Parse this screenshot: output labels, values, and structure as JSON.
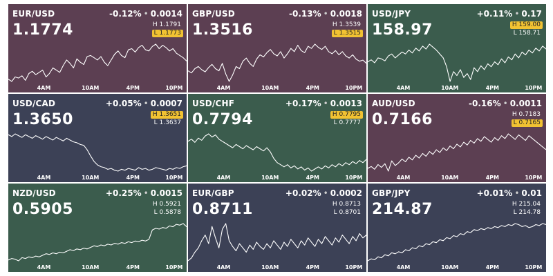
{
  "time_axis": [
    "4AM",
    "10AM",
    "4PM",
    "10PM"
  ],
  "colors": {
    "up": "#3b5c4d",
    "down": "#5c3f52",
    "flat": "#3c4156",
    "highlight": "#f1c232"
  },
  "tiles": [
    {
      "pair": "EUR/USD",
      "change_pct": "-0.12%",
      "change_abs": "0.0014",
      "price": "1.1774",
      "high": "H 1.1791",
      "low": "L 1.1773",
      "hit": "low",
      "color": "#5c3f52",
      "series": [
        78,
        76,
        80,
        79,
        81,
        77,
        83,
        85,
        82,
        84,
        86,
        80,
        83,
        88,
        86,
        84,
        90,
        95,
        92,
        88,
        96,
        93,
        91,
        98,
        99,
        97,
        95,
        98,
        93,
        90,
        95,
        100,
        103,
        99,
        97,
        104,
        105,
        102,
        106,
        108,
        104,
        103,
        107,
        109,
        105,
        108,
        106,
        103,
        105,
        101,
        99,
        97,
        94
      ]
    },
    {
      "pair": "GBP/USD",
      "change_pct": "-0.13%",
      "change_abs": "0.0018",
      "price": "1.3516",
      "high": "H 1.3539",
      "low": "L 1.3515",
      "hit": "low",
      "color": "#5c3f52",
      "series": [
        88,
        86,
        90,
        92,
        89,
        87,
        91,
        94,
        90,
        88,
        95,
        85,
        78,
        84,
        92,
        90,
        97,
        100,
        95,
        92,
        99,
        103,
        101,
        105,
        108,
        104,
        102,
        106,
        100,
        104,
        109,
        106,
        112,
        107,
        105,
        111,
        109,
        113,
        110,
        108,
        111,
        106,
        104,
        107,
        103,
        106,
        102,
        100,
        103,
        99,
        97,
        98,
        95
      ]
    },
    {
      "pair": "USD/JPY",
      "change_pct": "+0.11%",
      "change_abs": "0.17",
      "price": "158.97",
      "high": "H 159.00",
      "low": "L 158.71",
      "hit": "high",
      "color": "#3b5c4d",
      "series": [
        100,
        102,
        99,
        104,
        103,
        101,
        106,
        108,
        104,
        107,
        110,
        108,
        112,
        109,
        114,
        111,
        116,
        113,
        118,
        115,
        112,
        108,
        104,
        95,
        80,
        90,
        86,
        92,
        84,
        88,
        82,
        94,
        90,
        96,
        92,
        98,
        95,
        100,
        97,
        103,
        99,
        105,
        102,
        108,
        104,
        110,
        107,
        112,
        109,
        114,
        111,
        116,
        113
      ]
    },
    {
      "pair": "USD/CAD",
      "change_pct": "+0.05%",
      "change_abs": "0.0007",
      "price": "1.3650",
      "high": "H 1.3651",
      "low": "L 1.3637",
      "hit": "high",
      "color": "#3c4156",
      "series": [
        112,
        110,
        113,
        111,
        109,
        112,
        110,
        108,
        111,
        109,
        107,
        110,
        108,
        106,
        109,
        107,
        105,
        108,
        106,
        104,
        103,
        101,
        100,
        95,
        88,
        82,
        78,
        76,
        75,
        73,
        74,
        72,
        71,
        73,
        72,
        74,
        73,
        72,
        75,
        73,
        74,
        72,
        73,
        75,
        74,
        73,
        72,
        74,
        73,
        75,
        74,
        76,
        77
      ]
    },
    {
      "pair": "USD/CHF",
      "change_pct": "+0.17%",
      "change_abs": "0.0013",
      "price": "0.7794",
      "high": "H 0.7795",
      "low": "L 0.7777",
      "hit": "high",
      "color": "#3b5c4d",
      "series": [
        104,
        106,
        103,
        107,
        105,
        109,
        111,
        108,
        110,
        106,
        104,
        102,
        100,
        98,
        101,
        99,
        97,
        100,
        98,
        96,
        99,
        97,
        95,
        98,
        94,
        88,
        84,
        82,
        80,
        82,
        79,
        81,
        78,
        80,
        77,
        79,
        76,
        78,
        80,
        78,
        81,
        79,
        82,
        80,
        83,
        81,
        84,
        82,
        85,
        83,
        86,
        84,
        87
      ]
    },
    {
      "pair": "AUD/USD",
      "change_pct": "-0.16%",
      "change_abs": "0.0011",
      "price": "0.7166",
      "high": "H 0.7183",
      "low": "L 0.7165",
      "hit": "low",
      "color": "#5c3f52",
      "series": [
        78,
        80,
        77,
        82,
        79,
        83,
        75,
        86,
        81,
        84,
        88,
        85,
        90,
        87,
        92,
        89,
        94,
        91,
        96,
        93,
        98,
        95,
        100,
        97,
        102,
        99,
        104,
        101,
        106,
        103,
        108,
        105,
        110,
        107,
        112,
        109,
        106,
        111,
        108,
        113,
        110,
        115,
        112,
        109,
        114,
        111,
        108,
        113,
        110,
        107,
        104,
        101,
        98
      ]
    },
    {
      "pair": "NZD/USD",
      "change_pct": "+0.25%",
      "change_abs": "0.0015",
      "price": "0.5905",
      "high": "H 0.5921",
      "low": "L 0.5878",
      "hit": "",
      "color": "#3b5c4d",
      "series": [
        72,
        74,
        73,
        71,
        75,
        74,
        76,
        75,
        77,
        76,
        78,
        80,
        79,
        81,
        80,
        82,
        81,
        83,
        85,
        84,
        86,
        85,
        87,
        86,
        88,
        90,
        89,
        91,
        90,
        92,
        91,
        93,
        92,
        94,
        93,
        95,
        94,
        96,
        95,
        97,
        96,
        98,
        110,
        112,
        111,
        113,
        112,
        115,
        114,
        117,
        116,
        118,
        114
      ]
    },
    {
      "pair": "EUR/GBP",
      "change_pct": "+0.02%",
      "change_abs": "0.0002",
      "price": "0.8711",
      "high": "H 0.8713",
      "low": "L 0.8701",
      "hit": "",
      "color": "#3c4156",
      "series": [
        86,
        88,
        92,
        95,
        100,
        104,
        98,
        110,
        102,
        95,
        108,
        112,
        100,
        96,
        93,
        98,
        95,
        92,
        97,
        94,
        99,
        96,
        94,
        98,
        95,
        100,
        97,
        94,
        99,
        96,
        101,
        98,
        95,
        100,
        97,
        102,
        99,
        96,
        101,
        98,
        103,
        100,
        97,
        102,
        99,
        104,
        101,
        98,
        103,
        100,
        105,
        102,
        104
      ]
    },
    {
      "pair": "GBP/JPY",
      "change_pct": "+0.01%",
      "change_abs": "0.01",
      "price": "214.87",
      "high": "H 215.04",
      "low": "L 214.78",
      "hit": "",
      "color": "#3c4156",
      "series": [
        80,
        82,
        81,
        84,
        83,
        86,
        85,
        88,
        87,
        89,
        88,
        91,
        90,
        93,
        92,
        95,
        94,
        97,
        96,
        99,
        98,
        101,
        100,
        103,
        102,
        105,
        104,
        107,
        106,
        109,
        108,
        111,
        110,
        112,
        111,
        113,
        112,
        114,
        113,
        115,
        114,
        116,
        115,
        117,
        116,
        114,
        115,
        113,
        114,
        116,
        115,
        117,
        116
      ]
    }
  ]
}
